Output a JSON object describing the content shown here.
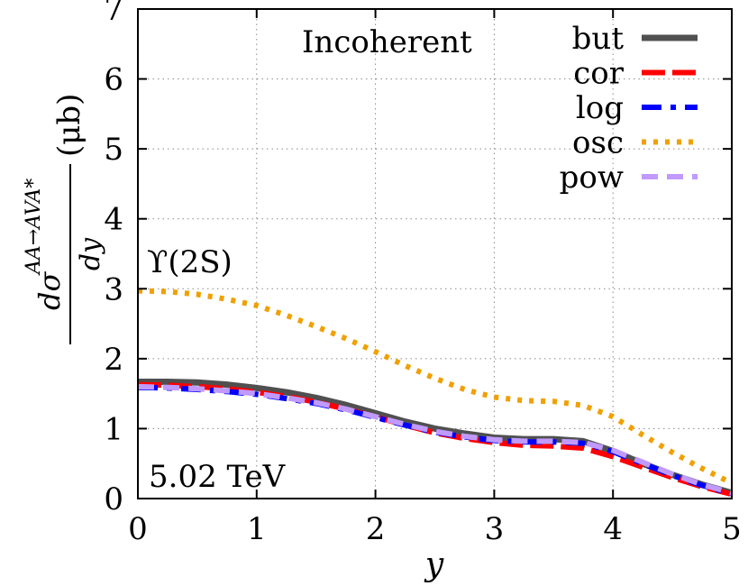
{
  "chart_data": {
    "type": "line",
    "xlabel": "y",
    "ylabel_main": "dσ",
    "ylabel_sup": "AA→AVA*",
    "ylabel_den": "dy",
    "ylabel_unit": "(μb)",
    "xlim": [
      0,
      5
    ],
    "ylim": [
      0,
      7
    ],
    "xticks": [
      0,
      1,
      2,
      3,
      4,
      5
    ],
    "yticks": [
      0,
      1,
      2,
      3,
      4,
      5,
      6,
      7
    ],
    "grid": true,
    "legend_position": "top-right",
    "annotations": {
      "title": "Incoherent",
      "particle": "ϒ(2S)",
      "energy": "5.02 TeV"
    },
    "x": [
      0,
      0.25,
      0.5,
      0.75,
      1,
      1.25,
      1.5,
      1.75,
      2,
      2.25,
      2.5,
      2.75,
      3,
      3.25,
      3.5,
      3.75,
      4,
      4.25,
      4.5,
      4.75,
      5
    ],
    "series": [
      {
        "name": "but",
        "color": "#505050",
        "style": "solid",
        "values": [
          1.67,
          1.67,
          1.66,
          1.63,
          1.58,
          1.52,
          1.44,
          1.34,
          1.22,
          1.1,
          1.0,
          0.93,
          0.87,
          0.85,
          0.85,
          0.82,
          0.68,
          0.5,
          0.34,
          0.2,
          0.08
        ]
      },
      {
        "name": "cor",
        "color": "#ff0000",
        "style": "longdash",
        "values": [
          1.63,
          1.62,
          1.6,
          1.57,
          1.52,
          1.46,
          1.38,
          1.28,
          1.17,
          1.05,
          0.94,
          0.86,
          0.8,
          0.76,
          0.75,
          0.72,
          0.6,
          0.45,
          0.3,
          0.17,
          0.06
        ]
      },
      {
        "name": "log",
        "color": "#0000ff",
        "style": "dashdot",
        "values": [
          1.59,
          1.58,
          1.56,
          1.53,
          1.49,
          1.43,
          1.36,
          1.27,
          1.16,
          1.05,
          0.95,
          0.88,
          0.83,
          0.81,
          0.81,
          0.79,
          0.67,
          0.5,
          0.33,
          0.19,
          0.07
        ]
      },
      {
        "name": "osc",
        "color": "#f0a000",
        "style": "dotted",
        "values": [
          2.97,
          2.96,
          2.92,
          2.85,
          2.76,
          2.62,
          2.46,
          2.29,
          2.1,
          1.9,
          1.72,
          1.56,
          1.45,
          1.4,
          1.39,
          1.33,
          1.17,
          0.91,
          0.66,
          0.43,
          0.22
        ]
      },
      {
        "name": "pow",
        "color": "#c09aff",
        "style": "dashed",
        "values": [
          1.6,
          1.59,
          1.57,
          1.54,
          1.5,
          1.44,
          1.37,
          1.28,
          1.17,
          1.06,
          0.96,
          0.89,
          0.84,
          0.82,
          0.82,
          0.8,
          0.69,
          0.52,
          0.35,
          0.2,
          0.08
        ]
      }
    ]
  }
}
